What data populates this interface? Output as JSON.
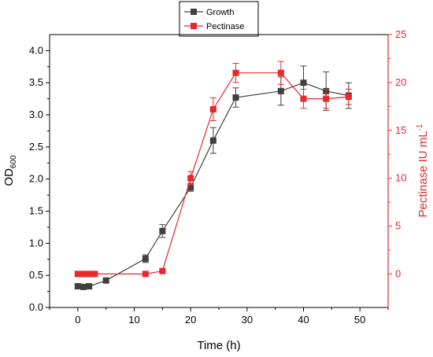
{
  "chart_data": {
    "type": "line",
    "xlabel": "Time (h)",
    "ylabel": {
      "main": "OD",
      "sub": "600"
    },
    "y2label": {
      "main": "Pectinase IU mL",
      "sup": "-1"
    },
    "xlim": [
      -5,
      55
    ],
    "ylim": [
      0,
      4.25
    ],
    "y2lim": [
      -3.5,
      25
    ],
    "x_ticks": [
      0,
      10,
      20,
      30,
      40,
      50
    ],
    "y_ticks": [
      0.0,
      0.5,
      1.0,
      1.5,
      2.0,
      2.5,
      3.0,
      3.5,
      4.0
    ],
    "y_tick_labels": [
      "0.0",
      "0.5",
      "1.0",
      "1.5",
      "2.0",
      "2.5",
      "3.0",
      "3.5",
      "4.0"
    ],
    "y2_ticks": [
      0,
      5,
      10,
      15,
      20,
      25
    ],
    "legend": "top-center",
    "grid": false,
    "series": [
      {
        "name": "Growth",
        "color": "#404040",
        "axis": "left",
        "x": [
          0,
          1,
          2,
          5,
          12,
          15,
          20,
          24,
          28,
          36,
          40,
          44,
          48
        ],
        "y": [
          0.33,
          0.32,
          0.33,
          0.42,
          0.76,
          1.19,
          1.87,
          2.6,
          3.27,
          3.37,
          3.5,
          3.37,
          3.3
        ],
        "err": [
          0.04,
          0.03,
          0.03,
          0.03,
          0.06,
          0.1,
          0.06,
          0.2,
          0.15,
          0.22,
          0.26,
          0.3,
          0.2
        ]
      },
      {
        "name": "Pectinase",
        "color": "#e8282b",
        "axis": "right",
        "x": [
          0,
          1,
          2,
          3,
          12,
          15,
          20,
          24,
          28,
          36,
          40,
          44,
          48
        ],
        "y": [
          0.0,
          0.0,
          0.0,
          0.0,
          0.0,
          0.3,
          10.0,
          17.2,
          21.0,
          21.0,
          18.3,
          18.3,
          18.5
        ],
        "err": [
          0.1,
          0.1,
          0.1,
          0.1,
          0.1,
          0.1,
          0.7,
          1.2,
          1.0,
          1.2,
          1.0,
          1.0,
          0.8
        ]
      }
    ]
  }
}
